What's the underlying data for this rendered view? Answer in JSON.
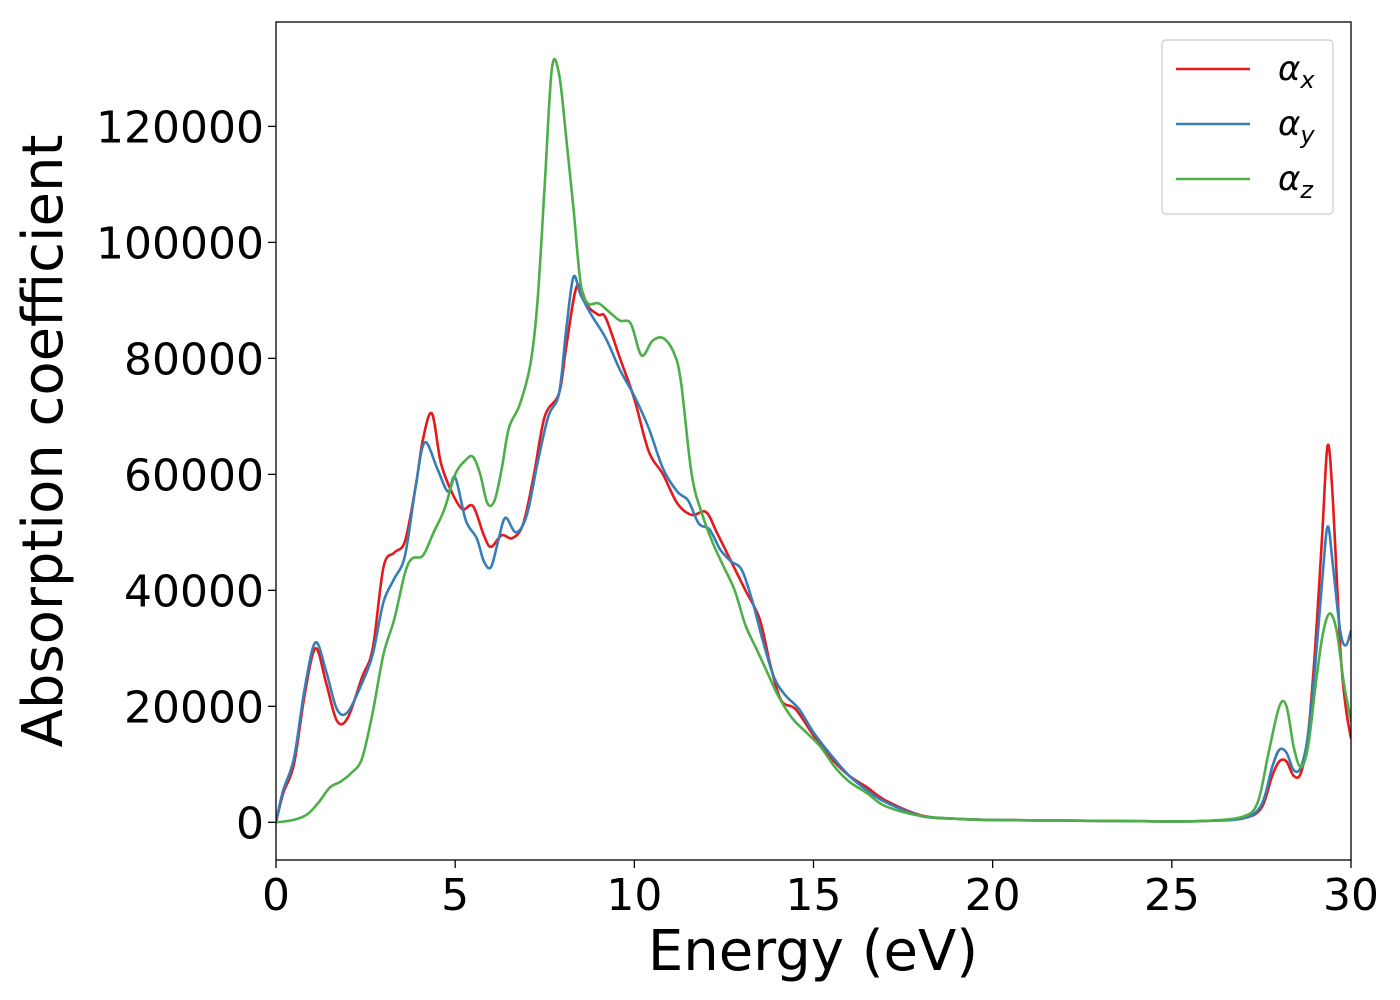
{
  "chart_data": {
    "type": "line",
    "title": "",
    "xlabel": "Energy (eV)",
    "ylabel": "Absorption coefficient",
    "xlim": [
      0,
      30
    ],
    "ylim": [
      -6500,
      138000
    ],
    "xticks": [
      0,
      5,
      10,
      15,
      20,
      25,
      30
    ],
    "yticks": [
      0,
      20000,
      40000,
      60000,
      80000,
      100000,
      120000
    ],
    "grid": false,
    "legend_position": "top-right",
    "series": [
      {
        "name": "αx",
        "legend_base": "α",
        "legend_sub": "x",
        "color": "#e41a1c",
        "points": [
          [
            0,
            0
          ],
          [
            0.2,
            5000
          ],
          [
            0.5,
            10000
          ],
          [
            0.8,
            22000
          ],
          [
            1.1,
            30000
          ],
          [
            1.4,
            24000
          ],
          [
            1.7,
            17500
          ],
          [
            2.0,
            18000
          ],
          [
            2.4,
            25000
          ],
          [
            2.7,
            30000
          ],
          [
            3.0,
            44000
          ],
          [
            3.3,
            46500
          ],
          [
            3.6,
            48500
          ],
          [
            3.9,
            58000
          ],
          [
            4.1,
            66000
          ],
          [
            4.35,
            70500
          ],
          [
            4.6,
            62000
          ],
          [
            4.9,
            57000
          ],
          [
            5.2,
            54000
          ],
          [
            5.5,
            54500
          ],
          [
            5.8,
            49500
          ],
          [
            6.0,
            47500
          ],
          [
            6.3,
            49500
          ],
          [
            6.6,
            49000
          ],
          [
            6.9,
            51500
          ],
          [
            7.2,
            60000
          ],
          [
            7.5,
            70000
          ],
          [
            7.9,
            74000
          ],
          [
            8.1,
            82000
          ],
          [
            8.4,
            92500
          ],
          [
            8.7,
            89000
          ],
          [
            9.0,
            87500
          ],
          [
            9.2,
            87000
          ],
          [
            9.6,
            80000
          ],
          [
            10.0,
            73000
          ],
          [
            10.4,
            64000
          ],
          [
            10.8,
            60000
          ],
          [
            11.2,
            55000
          ],
          [
            11.6,
            53000
          ],
          [
            12.0,
            53500
          ],
          [
            12.3,
            50000
          ],
          [
            12.7,
            45000
          ],
          [
            13.1,
            40000
          ],
          [
            13.5,
            35000
          ],
          [
            13.8,
            27000
          ],
          [
            14.1,
            21000
          ],
          [
            14.5,
            19500
          ],
          [
            15.0,
            15000
          ],
          [
            15.5,
            11000
          ],
          [
            16.0,
            8000
          ],
          [
            16.5,
            6000
          ],
          [
            17.0,
            3800
          ],
          [
            18.0,
            1200
          ],
          [
            19.0,
            600
          ],
          [
            20.0,
            400
          ],
          [
            22.0,
            300
          ],
          [
            24.0,
            200
          ],
          [
            25.0,
            150
          ],
          [
            26.0,
            250
          ],
          [
            27.0,
            700
          ],
          [
            27.5,
            2500
          ],
          [
            27.8,
            8000
          ],
          [
            28.0,
            10500
          ],
          [
            28.2,
            10500
          ],
          [
            28.4,
            8000
          ],
          [
            28.6,
            8500
          ],
          [
            28.8,
            15000
          ],
          [
            29.0,
            30000
          ],
          [
            29.2,
            50000
          ],
          [
            29.35,
            65000
          ],
          [
            29.5,
            55000
          ],
          [
            29.7,
            30000
          ],
          [
            29.85,
            20000
          ],
          [
            30.0,
            14500
          ]
        ]
      },
      {
        "name": "αy",
        "legend_base": "α",
        "legend_sub": "y",
        "color": "#377eb8",
        "points": [
          [
            0,
            0
          ],
          [
            0.2,
            5500
          ],
          [
            0.5,
            11000
          ],
          [
            0.8,
            23000
          ],
          [
            1.1,
            31000
          ],
          [
            1.4,
            26000
          ],
          [
            1.7,
            19500
          ],
          [
            2.0,
            19000
          ],
          [
            2.4,
            24000
          ],
          [
            2.7,
            29000
          ],
          [
            3.0,
            38000
          ],
          [
            3.3,
            42000
          ],
          [
            3.6,
            46000
          ],
          [
            3.9,
            58000
          ],
          [
            4.15,
            65500
          ],
          [
            4.5,
            61000
          ],
          [
            4.8,
            57000
          ],
          [
            5.0,
            59500
          ],
          [
            5.3,
            52000
          ],
          [
            5.6,
            49000
          ],
          [
            5.8,
            45000
          ],
          [
            6.0,
            44000
          ],
          [
            6.2,
            48500
          ],
          [
            6.4,
            52500
          ],
          [
            6.7,
            50000
          ],
          [
            7.0,
            53000
          ],
          [
            7.3,
            62000
          ],
          [
            7.6,
            70000
          ],
          [
            7.9,
            74000
          ],
          [
            8.1,
            85000
          ],
          [
            8.3,
            94000
          ],
          [
            8.5,
            91000
          ],
          [
            8.8,
            87500
          ],
          [
            9.2,
            83500
          ],
          [
            9.6,
            78000
          ],
          [
            10.0,
            73500
          ],
          [
            10.4,
            68000
          ],
          [
            10.8,
            61000
          ],
          [
            11.2,
            57000
          ],
          [
            11.5,
            55500
          ],
          [
            11.8,
            51500
          ],
          [
            12.1,
            50500
          ],
          [
            12.4,
            47000
          ],
          [
            12.7,
            45000
          ],
          [
            13.0,
            43500
          ],
          [
            13.3,
            38000
          ],
          [
            13.6,
            31000
          ],
          [
            13.9,
            25000
          ],
          [
            14.2,
            22000
          ],
          [
            14.6,
            19500
          ],
          [
            15.0,
            15500
          ],
          [
            15.5,
            11500
          ],
          [
            16.0,
            8000
          ],
          [
            16.5,
            5500
          ],
          [
            17.0,
            3500
          ],
          [
            18.0,
            1100
          ],
          [
            19.0,
            600
          ],
          [
            20.0,
            400
          ],
          [
            22.0,
            300
          ],
          [
            24.0,
            200
          ],
          [
            25.0,
            150
          ],
          [
            26.0,
            250
          ],
          [
            27.0,
            700
          ],
          [
            27.5,
            3000
          ],
          [
            27.8,
            9500
          ],
          [
            28.0,
            12500
          ],
          [
            28.2,
            12000
          ],
          [
            28.4,
            9000
          ],
          [
            28.6,
            9500
          ],
          [
            28.8,
            15000
          ],
          [
            29.0,
            27000
          ],
          [
            29.2,
            42000
          ],
          [
            29.35,
            51000
          ],
          [
            29.5,
            44000
          ],
          [
            29.7,
            33000
          ],
          [
            29.85,
            30500
          ],
          [
            30.0,
            33000
          ]
        ]
      },
      {
        "name": "αz",
        "legend_base": "α",
        "legend_sub": "z",
        "color": "#4daf4a",
        "points": [
          [
            0,
            0
          ],
          [
            0.3,
            200
          ],
          [
            0.6,
            600
          ],
          [
            0.9,
            1500
          ],
          [
            1.2,
            3500
          ],
          [
            1.5,
            6000
          ],
          [
            1.8,
            7000
          ],
          [
            2.1,
            8500
          ],
          [
            2.4,
            11000
          ],
          [
            2.7,
            19000
          ],
          [
            3.0,
            29000
          ],
          [
            3.3,
            35000
          ],
          [
            3.6,
            43000
          ],
          [
            3.8,
            45500
          ],
          [
            4.1,
            46000
          ],
          [
            4.4,
            50000
          ],
          [
            4.7,
            54000
          ],
          [
            5.0,
            60000
          ],
          [
            5.3,
            62500
          ],
          [
            5.5,
            63000
          ],
          [
            5.7,
            60000
          ],
          [
            5.9,
            55000
          ],
          [
            6.1,
            55500
          ],
          [
            6.3,
            61000
          ],
          [
            6.5,
            68000
          ],
          [
            6.8,
            72000
          ],
          [
            7.1,
            79000
          ],
          [
            7.3,
            90000
          ],
          [
            7.5,
            110000
          ],
          [
            7.7,
            130000
          ],
          [
            7.9,
            129000
          ],
          [
            8.1,
            118000
          ],
          [
            8.3,
            106000
          ],
          [
            8.5,
            93000
          ],
          [
            8.7,
            89500
          ],
          [
            9.0,
            89500
          ],
          [
            9.3,
            88000
          ],
          [
            9.6,
            86500
          ],
          [
            9.9,
            86000
          ],
          [
            10.2,
            80500
          ],
          [
            10.5,
            83000
          ],
          [
            10.8,
            83500
          ],
          [
            11.1,
            81000
          ],
          [
            11.3,
            76000
          ],
          [
            11.6,
            60000
          ],
          [
            11.9,
            53000
          ],
          [
            12.2,
            48000
          ],
          [
            12.5,
            44000
          ],
          [
            12.8,
            40000
          ],
          [
            13.1,
            34000
          ],
          [
            13.4,
            30000
          ],
          [
            13.7,
            26000
          ],
          [
            14.0,
            22000
          ],
          [
            14.4,
            18000
          ],
          [
            14.8,
            15500
          ],
          [
            15.2,
            13000
          ],
          [
            15.6,
            9500
          ],
          [
            16.0,
            7000
          ],
          [
            16.5,
            5000
          ],
          [
            17.0,
            2800
          ],
          [
            18.0,
            1100
          ],
          [
            19.0,
            600
          ],
          [
            20.0,
            400
          ],
          [
            22.0,
            300
          ],
          [
            24.0,
            200
          ],
          [
            25.0,
            150
          ],
          [
            26.0,
            250
          ],
          [
            27.0,
            1000
          ],
          [
            27.4,
            3500
          ],
          [
            27.7,
            12000
          ],
          [
            28.0,
            20000
          ],
          [
            28.2,
            20000
          ],
          [
            28.4,
            13000
          ],
          [
            28.6,
            9500
          ],
          [
            28.8,
            13000
          ],
          [
            29.0,
            23000
          ],
          [
            29.2,
            32000
          ],
          [
            29.4,
            36000
          ],
          [
            29.6,
            33000
          ],
          [
            29.8,
            24000
          ],
          [
            30.0,
            17500
          ]
        ]
      }
    ]
  }
}
